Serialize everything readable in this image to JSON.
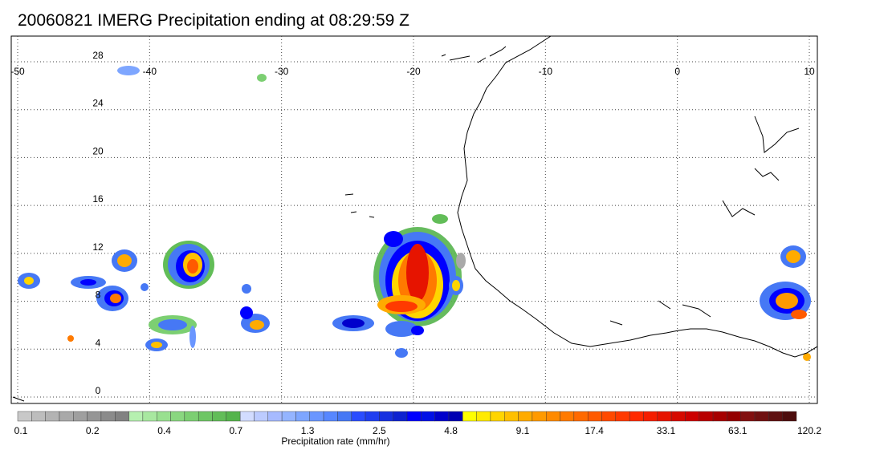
{
  "title": "20060821 IMERG Precipitation ending at 08:29:59 Z",
  "map": {
    "lon_range": [
      -50,
      10
    ],
    "lat_range": [
      -0.5,
      30
    ],
    "lon_ticks": [
      "-50",
      "-40",
      "-30",
      "-20",
      "-10",
      "0",
      "10"
    ],
    "lat_ticks": [
      "28",
      "24",
      "20",
      "16",
      "12",
      "8",
      "4",
      "0"
    ],
    "grid": "dotted",
    "coastline_color": "#000000"
  },
  "colorbar": {
    "label": "Precipitation rate (mm/hr)",
    "tick_labels": [
      "0.1",
      "0.2",
      "0.4",
      "0.7",
      "1.3",
      "2.5",
      "4.8",
      "9.1",
      "17.4",
      "33.1",
      "63.1",
      "120.2"
    ],
    "colors": [
      "#c8c8c8",
      "#bdbdbd",
      "#b3b3b3",
      "#a9a9a9",
      "#9f9f9f",
      "#959595",
      "#8b8b8b",
      "#828282",
      "#b6f0b0",
      "#a8e8a0",
      "#99e090",
      "#8ad780",
      "#7ccf72",
      "#6ec664",
      "#62bd58",
      "#55b44c",
      "#d2dcff",
      "#bccbff",
      "#a6baff",
      "#94b4ff",
      "#7ea6ff",
      "#6a96ff",
      "#5787ff",
      "#4678f5",
      "#2a4dff",
      "#1f3ef0",
      "#1630e0",
      "#0e22d0",
      "#0000ff",
      "#0010e6",
      "#0000cc",
      "#0000b3",
      "#ffff00",
      "#ffea00",
      "#ffd500",
      "#ffc000",
      "#ffab00",
      "#ff9a00",
      "#ff8a00",
      "#ff7a00",
      "#ff6a00",
      "#ff5a00",
      "#ff4a00",
      "#ff3a00",
      "#ff2a00",
      "#f51e00",
      "#e61400",
      "#d60a00",
      "#cc0000",
      "#b80000",
      "#a60000",
      "#940000",
      "#821010",
      "#701010",
      "#5e1010",
      "#4d0d0d"
    ]
  }
}
